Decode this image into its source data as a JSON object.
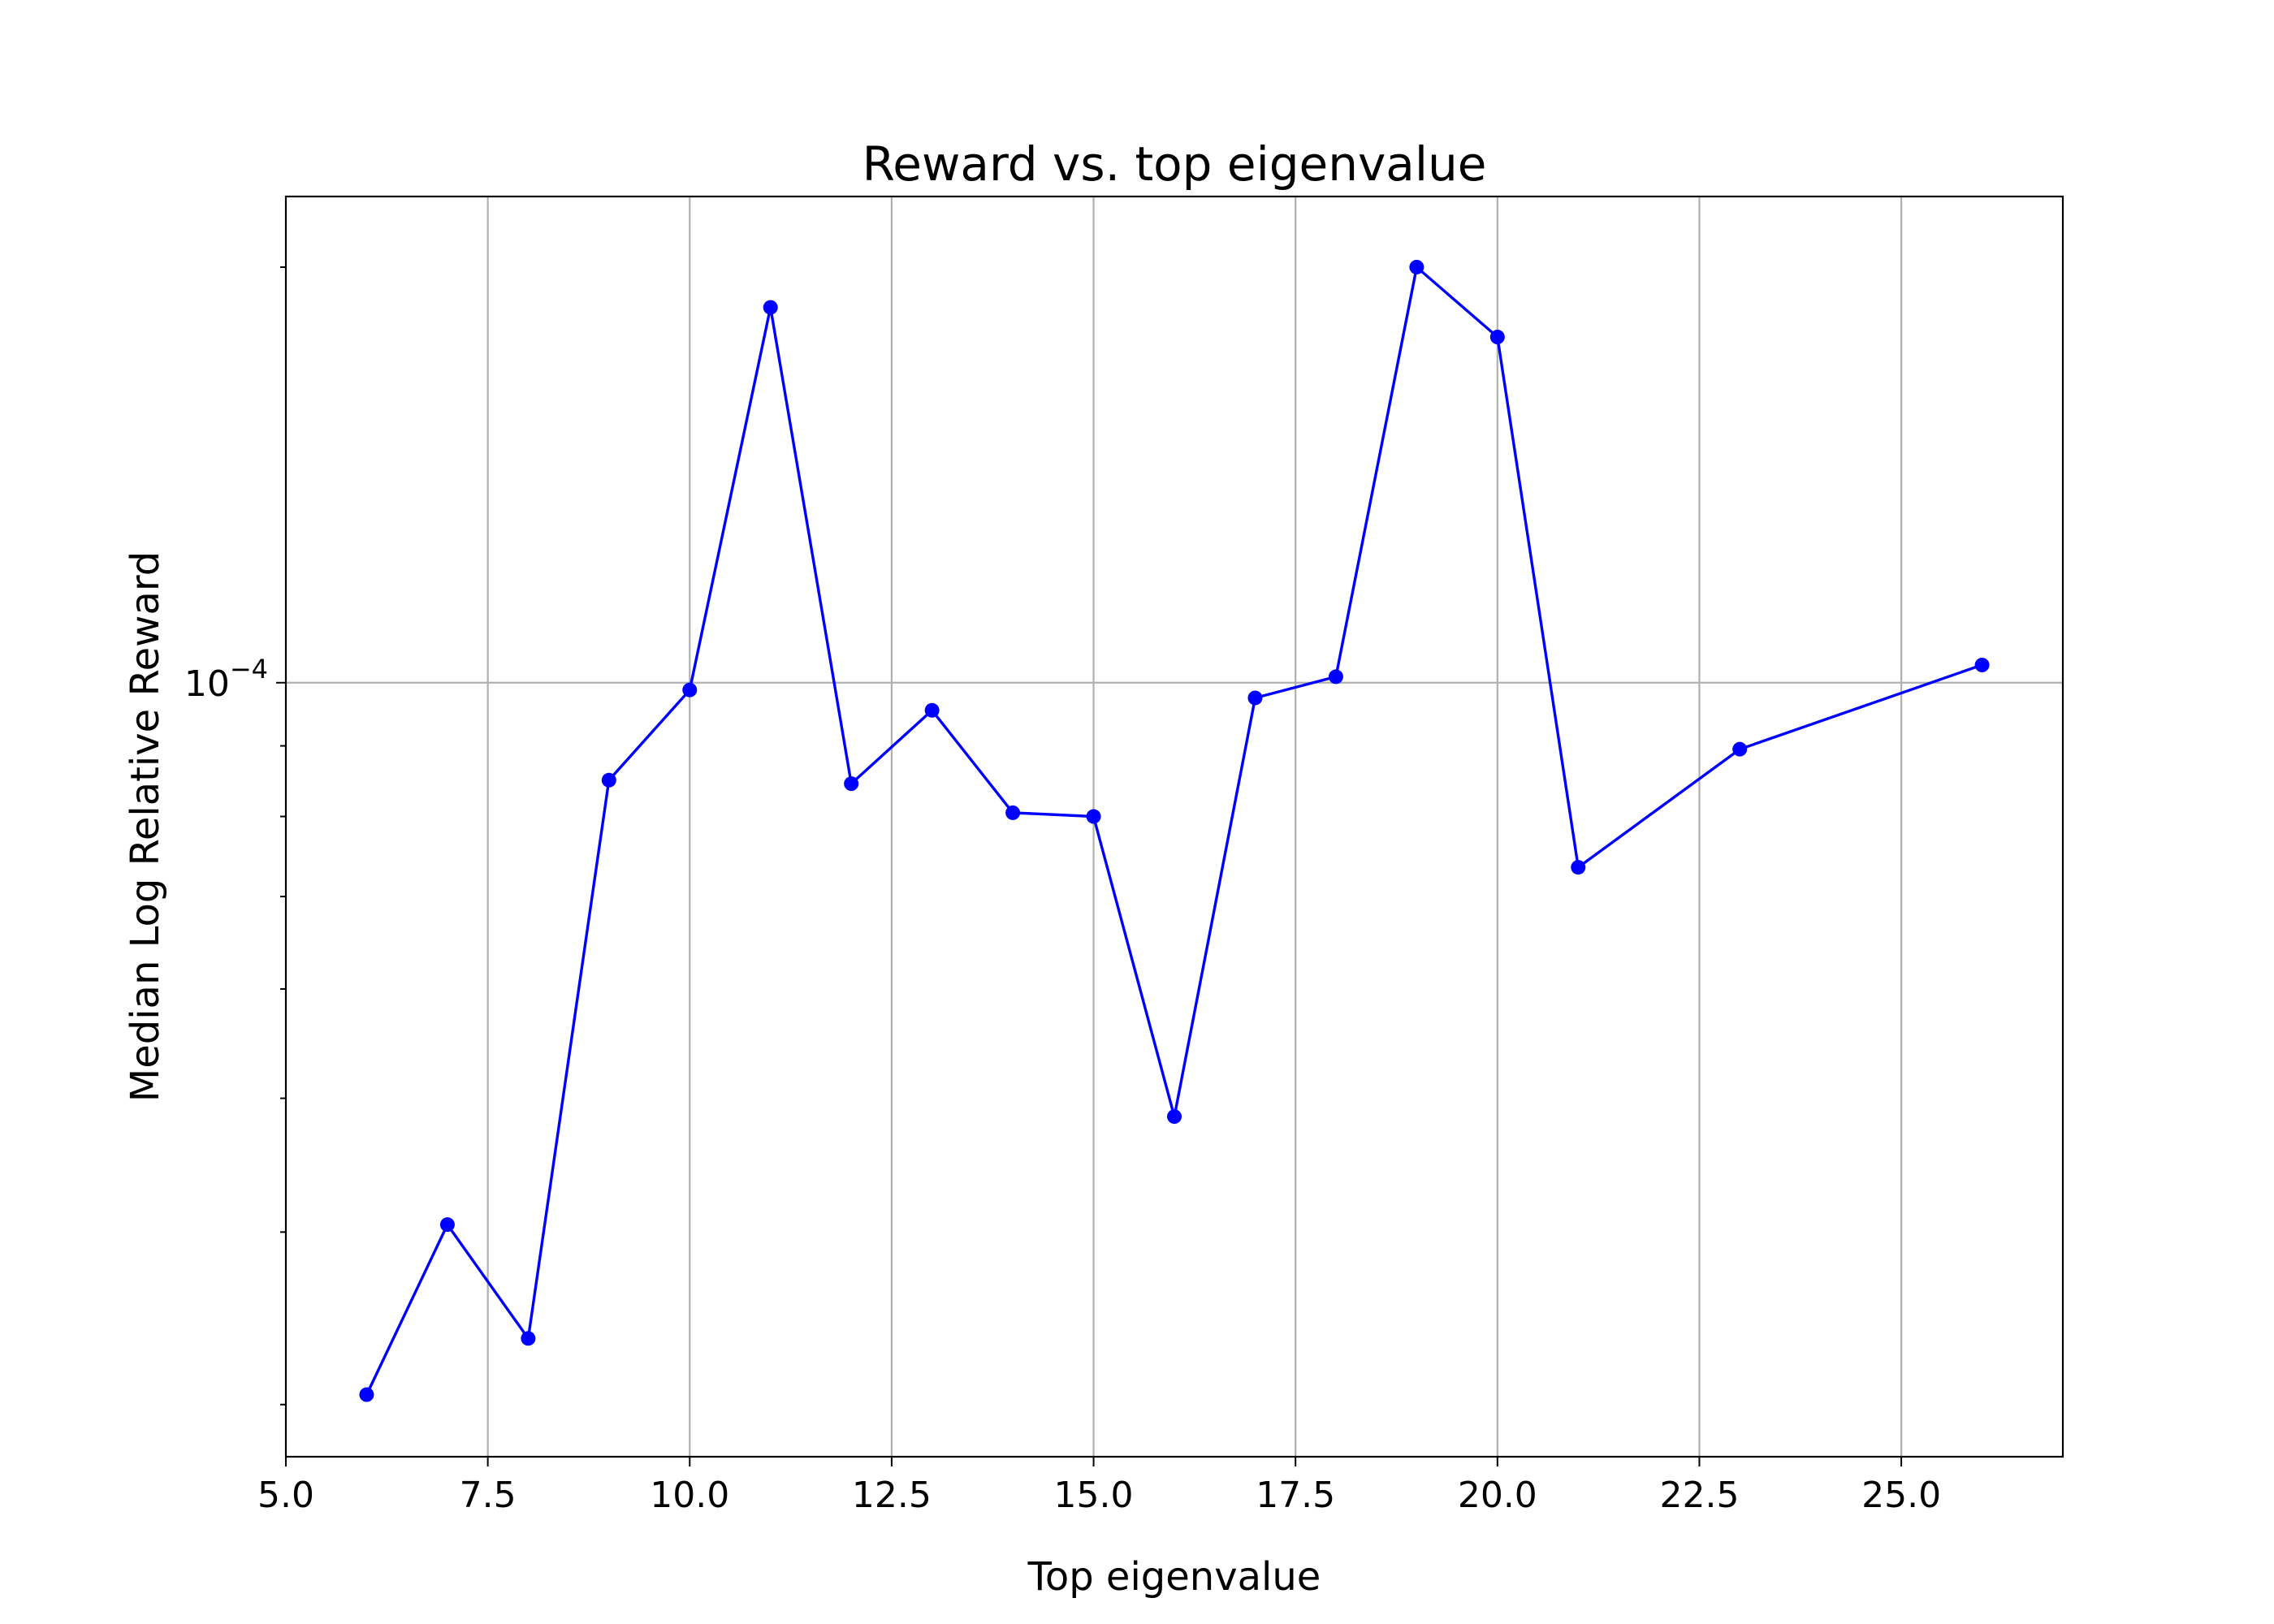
{
  "chart_data": {
    "type": "line",
    "title": "Reward vs. top eigenvalue",
    "xlabel": "Top eigenvalue",
    "ylabel": "Median Log Relative Reward",
    "yscale": "log",
    "xlim": [
      5.0,
      27.0
    ],
    "ylim": [
      2.75e-05,
      0.000225
    ],
    "grid": true,
    "color": "#0000ff",
    "xticks": [
      5.0,
      7.5,
      10.0,
      12.5,
      15.0,
      17.5,
      20.0,
      22.5,
      25.0
    ],
    "xtick_labels": [
      "5.0",
      "7.5",
      "10.0",
      "12.5",
      "15.0",
      "17.5",
      "20.0",
      "22.5",
      "25.0"
    ],
    "yticks": [
      0.0001
    ],
    "ytick_labels": [
      {
        "base": "10",
        "exp": "−4"
      }
    ],
    "yminor_ticks": [
      3e-05,
      4e-05,
      5e-05,
      6e-05,
      7e-05,
      8e-05,
      9e-05,
      0.0002
    ],
    "series": [
      {
        "x": [
          6,
          7,
          8,
          9,
          10,
          11,
          12,
          13,
          14,
          15,
          16,
          17,
          18,
          19,
          20,
          21,
          23,
          26
        ],
        "y": [
          3.05e-05,
          4.05e-05,
          3.35e-05,
          8.5e-05,
          9.88e-05,
          0.000187,
          8.45e-05,
          9.55e-05,
          8.05e-05,
          8e-05,
          4.85e-05,
          9.75e-05,
          0.000101,
          0.0002,
          0.000178,
          7.35e-05,
          8.95e-05,
          0.000103
        ]
      }
    ]
  }
}
